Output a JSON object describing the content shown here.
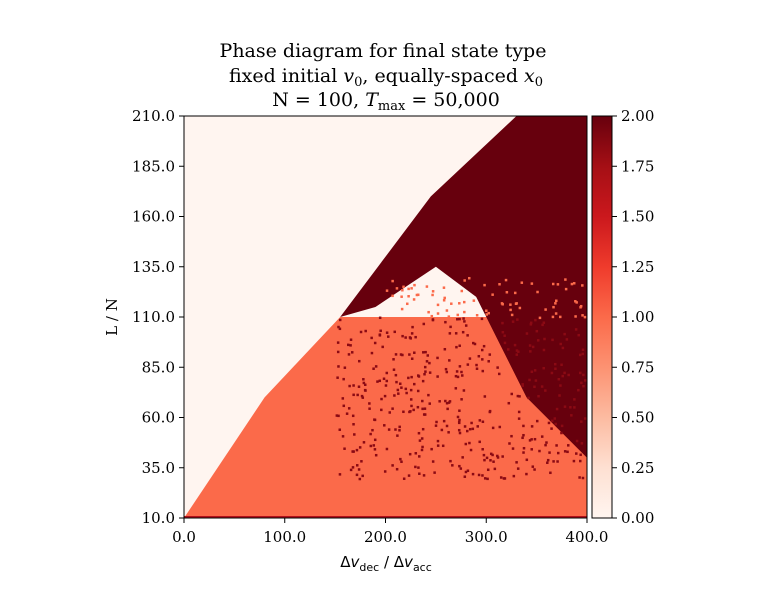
{
  "chart_data": {
    "type": "heatmap",
    "title_lines": [
      "Phase diagram for final state type",
      "fixed initial v0, equally-spaced x0",
      "N = 100, Tmax = 50,000"
    ],
    "xlabel": "Δvdec / Δvacc",
    "ylabel": "L / N",
    "xlim": [
      0,
      400
    ],
    "ylim": [
      10,
      210
    ],
    "x_ticks": [
      "0.0",
      "100.0",
      "200.0",
      "300.0",
      "400.0"
    ],
    "y_ticks": [
      "10.0",
      "35.0",
      "60.0",
      "85.0",
      "110.0",
      "135.0",
      "160.0",
      "185.0",
      "210.0"
    ],
    "colorbar": {
      "range": [
        0,
        2
      ],
      "ticks": [
        "0.00",
        "0.25",
        "0.50",
        "0.75",
        "1.00",
        "1.25",
        "1.50",
        "1.75",
        "2.00"
      ],
      "colormap": "Reds"
    },
    "regions": [
      {
        "value": 0,
        "color": "#fff5f0",
        "description_points": [
          [
            0,
            10
          ],
          [
            0,
            210
          ],
          [
            330,
            210
          ],
          [
            245,
            170
          ],
          [
            155,
            110
          ],
          [
            80,
            70
          ],
          [
            0,
            10
          ]
        ]
      },
      {
        "value": 1,
        "color": "#fb6a4a",
        "description_points": [
          [
            0,
            10
          ],
          [
            80,
            70
          ],
          [
            155,
            110
          ],
          [
            400,
            110
          ],
          [
            400,
            10
          ]
        ]
      },
      {
        "value": 2,
        "color": "#67000d",
        "description_points": [
          [
            330,
            210
          ],
          [
            400,
            210
          ],
          [
            400,
            40
          ],
          [
            340,
            70
          ],
          [
            290,
            120
          ],
          [
            250,
            135
          ],
          [
            190,
            115
          ],
          [
            155,
            110
          ],
          [
            245,
            170
          ]
        ]
      }
    ],
    "colors": {
      "low": "#fff5f0",
      "mid": "#fb6a4a",
      "high": "#67000d"
    }
  }
}
